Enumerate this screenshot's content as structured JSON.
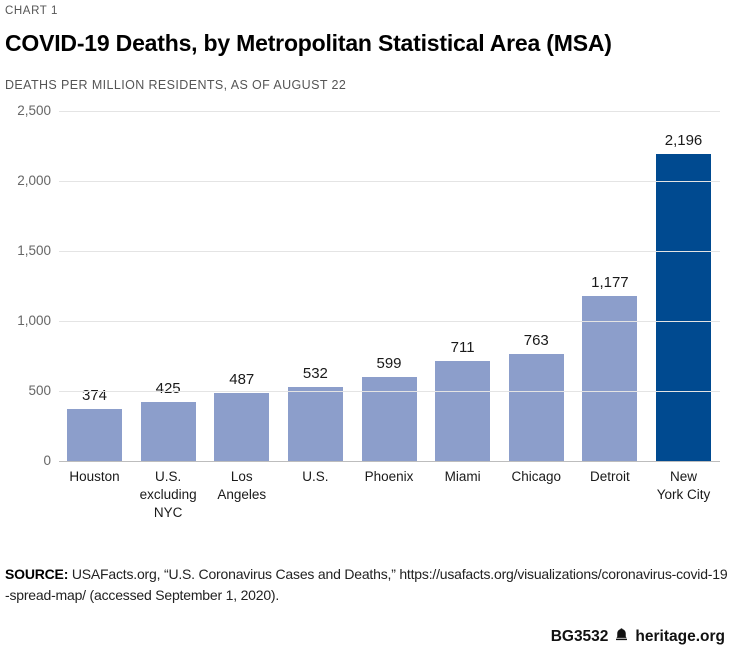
{
  "header": {
    "kicker": "CHART 1",
    "title": "COVID-19 Deaths, by Metropolitan Statistical Area (MSA)",
    "subtitle": "DEATHS PER MILLION RESIDENTS, AS OF AUGUST 22"
  },
  "chart_data": {
    "type": "bar",
    "title": "COVID-19 Deaths, by Metropolitan Statistical Area (MSA)",
    "subtitle": "DEATHS PER MILLION RESIDENTS, AS OF AUGUST 22",
    "categories": [
      "Houston",
      "U.S. excluding NYC",
      "Los Angeles",
      "U.S.",
      "Phoenix",
      "Miami",
      "Chicago",
      "Detroit",
      "New York City"
    ],
    "category_lines": [
      [
        "Houston"
      ],
      [
        "U.S.",
        "excluding",
        "NYC"
      ],
      [
        "Los",
        "Angeles"
      ],
      [
        "U.S."
      ],
      [
        "Phoenix"
      ],
      [
        "Miami"
      ],
      [
        "Chicago"
      ],
      [
        "Detroit"
      ],
      [
        "New",
        "York City"
      ]
    ],
    "values": [
      374,
      425,
      487,
      532,
      599,
      711,
      763,
      1177,
      2196
    ],
    "value_labels": [
      "374",
      "425",
      "487",
      "532",
      "599",
      "711",
      "763",
      "1,177",
      "2,196"
    ],
    "xlabel": "",
    "ylabel": "Deaths per million residents",
    "ylim": [
      0,
      2500
    ],
    "ytick_values": [
      2500,
      2000,
      1500,
      1000,
      500,
      0
    ],
    "ytick_labels": [
      "2,500",
      "2,000",
      "1,500",
      "1,000",
      "500",
      "0"
    ],
    "grid": true,
    "legend": "none",
    "bar_color": "#8C9ECB",
    "highlight_color": "#004A90",
    "highlight_index": 8
  },
  "source": {
    "label": "SOURCE:",
    "text": " USAFacts.org, “U.S. Coronavirus Cases and Deaths,” https://usafacts.org/visualizations/coronavirus-covid-19-spread-map/ (accessed September 1, 2020)."
  },
  "footer": {
    "report_id": "BG3532",
    "site": "heritage.org",
    "icon": "liberty-bell-icon"
  }
}
